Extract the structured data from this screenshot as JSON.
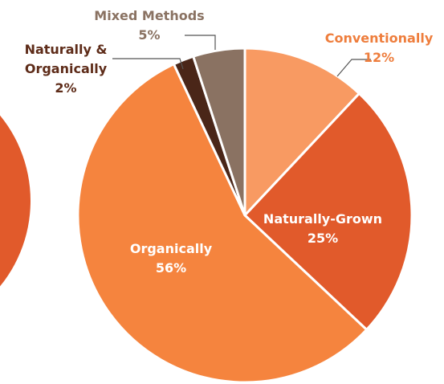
{
  "chart_data": {
    "type": "pie",
    "categories": [
      "Conventionally",
      "Naturally-Grown",
      "Organically",
      "Naturally & Organically",
      "Mixed Methods"
    ],
    "values": [
      12,
      25,
      56,
      2,
      5
    ],
    "value_labels": [
      "12%",
      "25%",
      "56%",
      "2%",
      "5%"
    ],
    "colors": [
      "#f89a62",
      "#e15a2b",
      "#f5843e",
      "#4a2618",
      "#8a7262"
    ]
  }
}
